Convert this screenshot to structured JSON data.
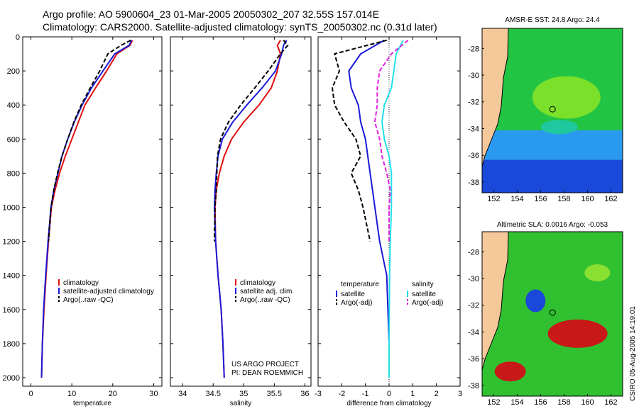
{
  "header": {
    "line1": "Argo profile: AO 5900604_23 01-Mar-2005 20050302_207 32.55S 157.014E",
    "line2": "Climatology: CARS2000. Satellite-adjusted climatology: synTS_20050302.nc (0.31d later)"
  },
  "colors": {
    "climatology": "#e01010",
    "satellite": "#1a1ad8",
    "argo": "#000000",
    "sat_salinity": "#22e0e8",
    "argo_salinity": "#e020e0",
    "land": "#f5c89a"
  },
  "credit": "CSIRO 05-Aug-2005 14:19:01",
  "project_note": [
    "US ARGO PROJECT",
    "PI: DEAN ROEMMICH"
  ],
  "chart_data": [
    {
      "type": "line",
      "xlabel": "temperature",
      "ylabel": "",
      "xlim": [
        -2,
        32
      ],
      "ylim": [
        0,
        2050
      ],
      "y_inverted": true,
      "xticks": [
        0,
        10,
        20,
        30
      ],
      "yticks": [
        0,
        200,
        400,
        600,
        800,
        1000,
        1200,
        1400,
        1600,
        1800,
        2000
      ],
      "legend": {
        "placement": "lower-right",
        "entries": [
          "climatology",
          "satellite-adjusted climatology",
          "Argo(..raw -QC)"
        ]
      },
      "series": [
        {
          "name": "climatology",
          "style": "solid",
          "color": "#e01010",
          "x": [
            24.8,
            24.2,
            21,
            18.5,
            15.8,
            13.2,
            11.6,
            10,
            8.4,
            7,
            5.9,
            5,
            4.3,
            3.7,
            3.2,
            2.8,
            2.6
          ],
          "y": [
            20,
            50,
            100,
            200,
            300,
            400,
            500,
            600,
            700,
            800,
            900,
            1000,
            1200,
            1400,
            1600,
            1800,
            2000
          ]
        },
        {
          "name": "satellite-adjusted climatology",
          "style": "solid",
          "color": "#1a1ad8",
          "x": [
            24.6,
            24,
            20.5,
            17.6,
            14.8,
            12.5,
            10.6,
            9,
            7.6,
            6.6,
            5.6,
            4.9,
            4.2,
            3.6,
            3.1,
            2.8,
            2.6
          ],
          "y": [
            20,
            50,
            100,
            200,
            300,
            400,
            500,
            600,
            700,
            800,
            900,
            1000,
            1200,
            1400,
            1600,
            1800,
            2000
          ]
        },
        {
          "name": "Argo(..raw -QC)",
          "style": "dashed",
          "color": "#000000",
          "x": [
            24.4,
            22,
            18.8,
            16.8,
            14.5,
            12.3,
            10.5,
            9,
            7.6,
            6.5,
            5.6,
            4.9,
            4.3
          ],
          "y": [
            20,
            50,
            100,
            200,
            300,
            400,
            500,
            600,
            700,
            800,
            900,
            1000,
            1200
          ]
        }
      ]
    },
    {
      "type": "line",
      "xlabel": "salinity",
      "ylabel": "",
      "xlim": [
        33.8,
        36.1
      ],
      "ylim": [
        0,
        2050
      ],
      "y_inverted": true,
      "xticks": [
        34,
        34.5,
        35,
        35.5,
        36
      ],
      "legend": {
        "placement": "lower-right",
        "entries": [
          "climatology",
          "satellite adj. clim.",
          "Argo(..raw -QC)"
        ]
      },
      "series": [
        {
          "name": "climatology",
          "style": "solid",
          "color": "#e01010",
          "x": [
            35.6,
            35.55,
            35.6,
            35.55,
            35.45,
            35.25,
            35,
            34.8,
            34.68,
            34.6,
            34.55,
            34.53,
            34.54,
            34.58,
            34.63,
            34.66,
            34.68
          ],
          "y": [
            20,
            50,
            100,
            200,
            300,
            400,
            500,
            600,
            700,
            800,
            900,
            1000,
            1200,
            1400,
            1600,
            1800,
            2000
          ]
        },
        {
          "name": "satellite adj. clim.",
          "style": "solid",
          "color": "#1a1ad8",
          "x": [
            35.7,
            35.65,
            35.62,
            35.52,
            35.3,
            35.05,
            34.82,
            34.65,
            34.58,
            34.55,
            34.53,
            34.52,
            34.54,
            34.58,
            34.63,
            34.66,
            34.68
          ],
          "y": [
            20,
            50,
            100,
            200,
            300,
            400,
            500,
            600,
            700,
            800,
            900,
            1000,
            1200,
            1400,
            1600,
            1800,
            2000
          ]
        },
        {
          "name": "Argo(..raw -QC)",
          "style": "dashed",
          "color": "#000000",
          "x": [
            35.65,
            35.72,
            35.6,
            35.4,
            35.18,
            34.95,
            34.75,
            34.62,
            34.57,
            34.56,
            34.55,
            34.53,
            34.52
          ],
          "y": [
            20,
            50,
            100,
            200,
            300,
            400,
            500,
            600,
            700,
            800,
            900,
            1000,
            1200
          ]
        }
      ]
    },
    {
      "type": "line",
      "xlabel": "difference from climatology",
      "ylabel": "",
      "xlim": [
        -3,
        3
      ],
      "ylim": [
        0,
        2050
      ],
      "y_inverted": true,
      "xticks": [
        -3,
        -2,
        -1,
        0,
        1,
        2,
        3
      ],
      "legend": {
        "placement": "lower-right",
        "groups": [
          {
            "title": "temperature",
            "entries": [
              "satellite",
              "Argo(-adj)"
            ]
          },
          {
            "title": "salinity",
            "entries": [
              "satellite",
              "Argo(-adj)"
            ]
          }
        ]
      },
      "series": [
        {
          "name": "satellite",
          "group": "temperature",
          "style": "solid",
          "color": "#1a1ad8",
          "x": [
            -0.2,
            -1.2,
            -1.7,
            -1.6,
            -1.3,
            -1.2,
            -1.0,
            -0.9,
            -0.8,
            -0.7,
            -0.6,
            -0.4,
            -0.1,
            0,
            0
          ],
          "y": [
            20,
            100,
            200,
            300,
            400,
            500,
            600,
            700,
            800,
            900,
            1000,
            1200,
            1400,
            1800,
            2000
          ]
        },
        {
          "name": "Argo(-adj)",
          "group": "temperature",
          "style": "dashed",
          "color": "#000000",
          "x": [
            -0.1,
            -2.3,
            -2.1,
            -2.4,
            -2.3,
            -1.9,
            -1.4,
            -1.2,
            -1.6,
            -1.3,
            -1.1,
            -0.8
          ],
          "y": [
            20,
            100,
            200,
            300,
            400,
            500,
            600,
            700,
            800,
            900,
            1000,
            1200
          ]
        },
        {
          "name": "satellite",
          "group": "salinity",
          "style": "solid",
          "color": "#22e0e8",
          "x": [
            0.6,
            0.3,
            0.2,
            0.1,
            -0.2,
            -0.3,
            -0.2,
            0,
            0.1,
            0.1,
            0.05,
            0.02,
            0,
            0
          ],
          "y": [
            20,
            100,
            200,
            300,
            400,
            500,
            600,
            700,
            800,
            1000,
            1200,
            1400,
            1800,
            2000
          ]
        },
        {
          "name": "Argo(-adj)",
          "group": "salinity",
          "style": "dashed",
          "color": "#e020e0",
          "x": [
            0.8,
            0.1,
            -0.4,
            -0.5,
            -0.5,
            -0.6,
            -0.4,
            -0.3,
            -0.1,
            0.05,
            0,
            0
          ],
          "y": [
            20,
            100,
            200,
            300,
            400,
            500,
            600,
            700,
            800,
            900,
            1000,
            1200
          ]
        }
      ]
    },
    {
      "type": "heatmap",
      "title": "AMSR-E SST: 24.8 Argo: 24.4",
      "xticks": [
        152,
        154,
        156,
        158,
        160,
        162
      ],
      "yticks": [
        -28,
        -30,
        -32,
        -34,
        -36,
        -38
      ],
      "xlim": [
        151,
        163
      ],
      "ylim": [
        -38.8,
        -26.5
      ],
      "marker": {
        "lon": 157.014,
        "lat": -32.55
      }
    },
    {
      "type": "heatmap",
      "title": "Altimetric SLA: 0.0016 Argo: -0.053",
      "xticks": [
        152,
        154,
        156,
        158,
        160,
        162
      ],
      "yticks": [
        -28,
        -30,
        -32,
        -34,
        -36,
        -38
      ],
      "xlim": [
        151,
        163
      ],
      "ylim": [
        -38.8,
        -26.5
      ],
      "marker": {
        "lon": 157.014,
        "lat": -32.55
      }
    }
  ]
}
